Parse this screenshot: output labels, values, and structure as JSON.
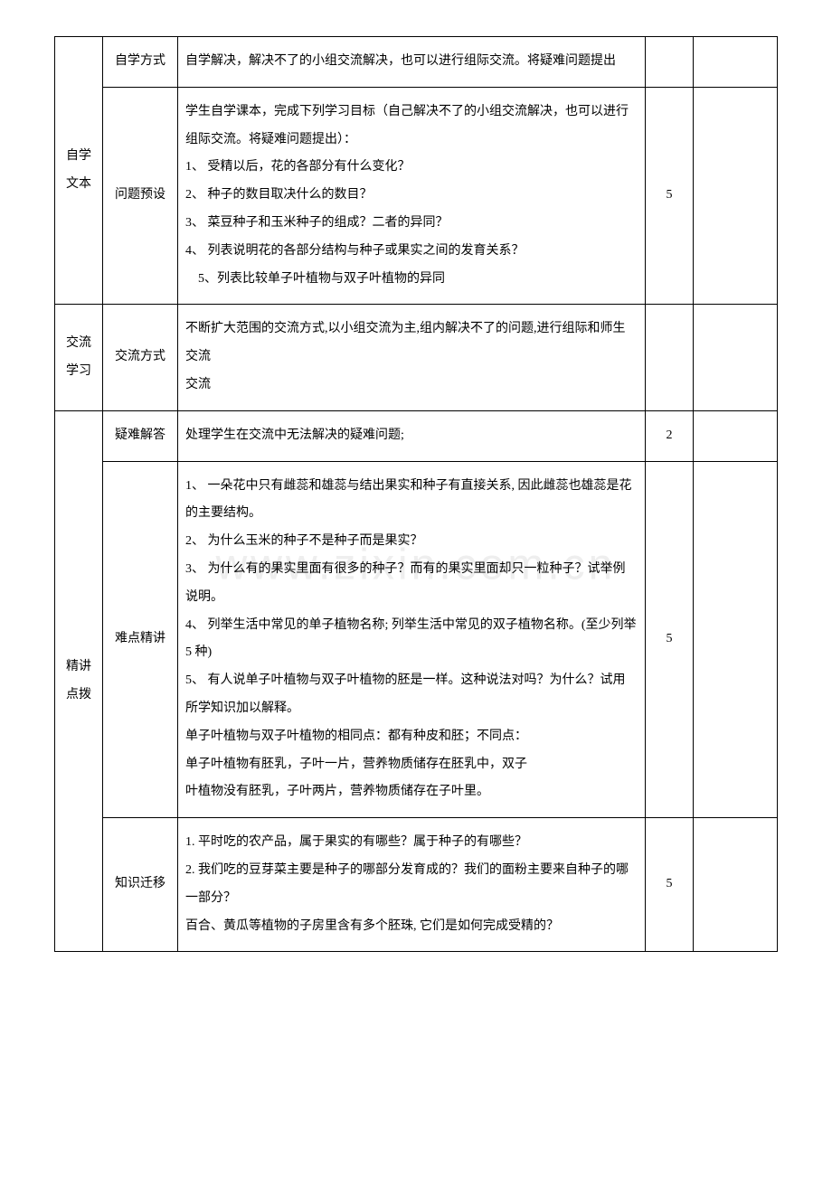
{
  "watermark": "www.zixin.com.cn",
  "rows": {
    "r1": {
      "col1": "自学文本",
      "col2": "自学方式",
      "content": "自学解决，解决不了的小组交流解决，也可以进行组际交流。将疑难问题提出",
      "time": "",
      "note": ""
    },
    "r2": {
      "col2": "问题预设",
      "intro": "学生自学课本，完成下列学习目标（自己解决不了的小组交流解决，也可以进行组际交流。将疑难问题提出）：",
      "items": [
        "1、 受精以后，花的各部分有什么变化？",
        "2、 种子的数目取决什么的数目？",
        "3、 菜豆种子和玉米种子的组成？二者的异同？",
        "4、 列表说明花的各部分结构与种子或果实之间的发育关系？",
        "5、列表比较单子叶植物与双子叶植物的异同"
      ],
      "time": "5",
      "note": ""
    },
    "r3": {
      "col1": "交流学习",
      "col2": "交流方式",
      "content1": "不断扩大范围的交流方式,以小组交流为主,组内解决不了的问题,进行组际和师生交流",
      "content2": "交流",
      "time": "",
      "note": ""
    },
    "r4": {
      "col1": "精讲点拨",
      "col2": "疑难解答",
      "content": "处理学生在交流中无法解决的疑难问题;",
      "time": "2",
      "note": ""
    },
    "r5": {
      "col2": "难点精讲",
      "items": [
        "1、 一朵花中只有雌蕊和雄蕊与结出果实和种子有直接关系, 因此雌蕊也雄蕊是花的主要结构。",
        "2、 为什么玉米的种子不是种子而是果实？",
        "3、 为什么有的果实里面有很多的种子？而有的果实里面却只一粒种子？试举例说明。",
        "4、 列举生活中常见的单子植物名称; 列举生活中常见的双子植物名称。(至少列举 5 种)",
        "5、 有人说单子叶植物与双子叶植物的胚是一样。这种说法对吗？为什么？试用所学知识加以解释。"
      ],
      "extra": [
        "单子叶植物与双子叶植物的相同点：都有种皮和胚；不同点：",
        "单子叶植物有胚乳，子叶一片，营养物质储存在胚乳中，双子",
        "叶植物没有胚乳，子叶两片，营养物质储存在子叶里。"
      ],
      "time": "5",
      "note": ""
    },
    "r6": {
      "col2": "知识迁移",
      "items": [
        "1.  平时吃的农产品，属于果实的有哪些？属于种子的有哪些？",
        "2.  我们吃的豆芽菜主要是种子的哪部分发育成的？我们的面粉主要来自种子的哪一部分？"
      ],
      "extra": [
        "百合、黄瓜等植物的子房里含有多个胚珠, 它们是如何完成受精的？"
      ],
      "time": "5",
      "note": ""
    }
  }
}
